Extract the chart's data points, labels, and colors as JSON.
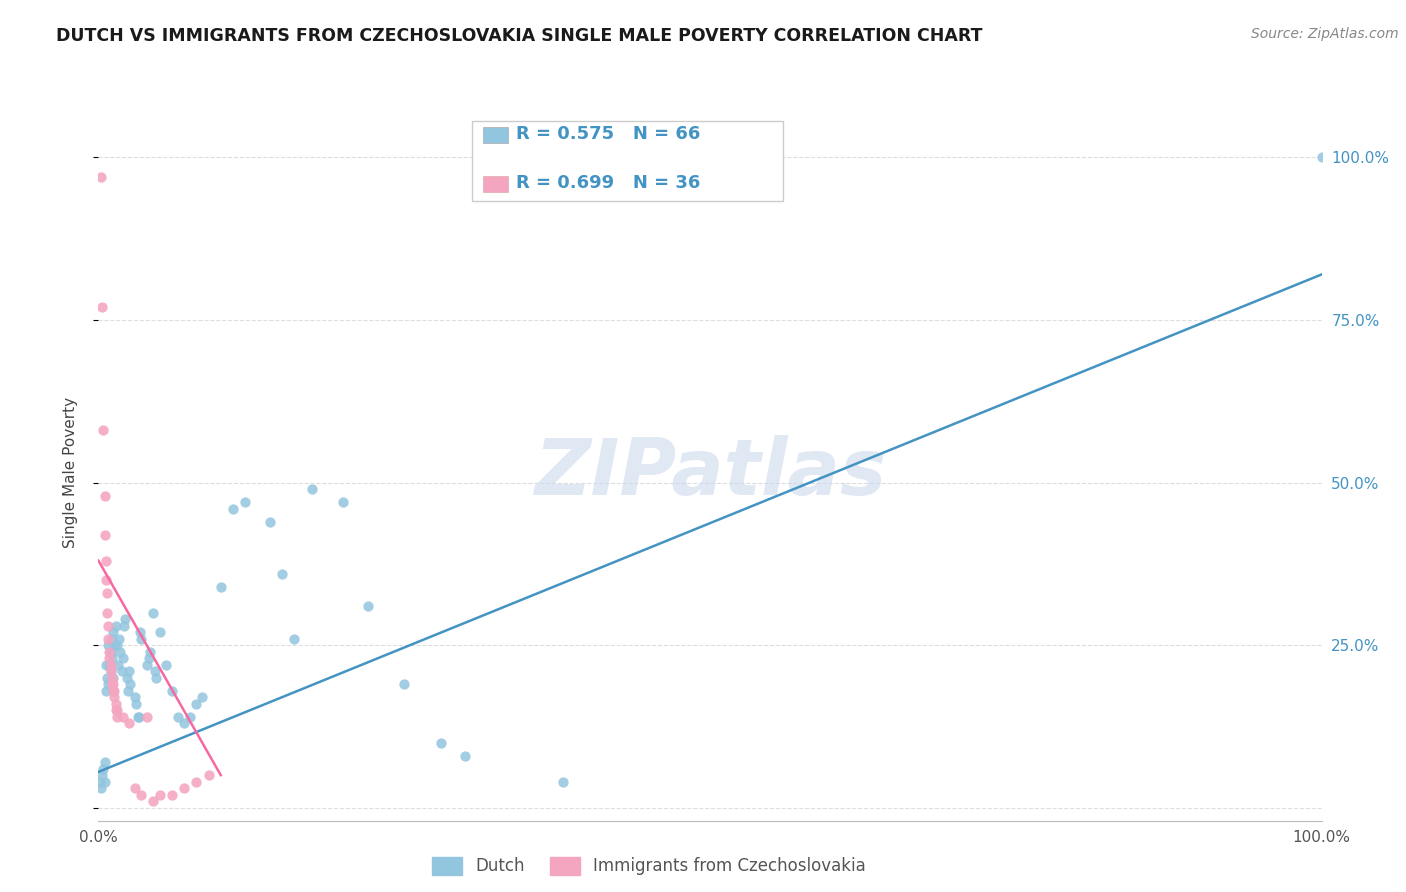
{
  "title": "DUTCH VS IMMIGRANTS FROM CZECHOSLOVAKIA SINGLE MALE POVERTY CORRELATION CHART",
  "source": "Source: ZipAtlas.com",
  "ylabel": "Single Male Poverty",
  "legend_dutch": "Dutch",
  "legend_czech": "Immigrants from Czechoslovakia",
  "legend_r_dutch": "R = 0.575",
  "legend_n_dutch": "N = 66",
  "legend_r_czech": "R = 0.699",
  "legend_n_czech": "N = 36",
  "watermark": "ZIPatlas",
  "dutch_color": "#92c5de",
  "czech_color": "#f4a6c0",
  "line_dutch_color": "#4393c3",
  "line_czech_color": "#f768a1",
  "right_tick_color": "#4393c3",
  "legend_text_color": "#4393c3",
  "dutch_points": [
    [
      0.001,
      0.04
    ],
    [
      0.002,
      0.03
    ],
    [
      0.003,
      0.05
    ],
    [
      0.004,
      0.06
    ],
    [
      0.005,
      0.07
    ],
    [
      0.005,
      0.04
    ],
    [
      0.006,
      0.18
    ],
    [
      0.006,
      0.22
    ],
    [
      0.007,
      0.2
    ],
    [
      0.008,
      0.19
    ],
    [
      0.008,
      0.25
    ],
    [
      0.009,
      0.22
    ],
    [
      0.01,
      0.24
    ],
    [
      0.01,
      0.21
    ],
    [
      0.011,
      0.23
    ],
    [
      0.011,
      0.26
    ],
    [
      0.012,
      0.27
    ],
    [
      0.012,
      0.2
    ],
    [
      0.013,
      0.25
    ],
    [
      0.014,
      0.28
    ],
    [
      0.015,
      0.25
    ],
    [
      0.016,
      0.22
    ],
    [
      0.017,
      0.26
    ],
    [
      0.018,
      0.24
    ],
    [
      0.019,
      0.21
    ],
    [
      0.02,
      0.23
    ],
    [
      0.021,
      0.28
    ],
    [
      0.022,
      0.29
    ],
    [
      0.023,
      0.2
    ],
    [
      0.024,
      0.18
    ],
    [
      0.025,
      0.21
    ],
    [
      0.026,
      0.19
    ],
    [
      0.03,
      0.17
    ],
    [
      0.031,
      0.16
    ],
    [
      0.032,
      0.14
    ],
    [
      0.033,
      0.14
    ],
    [
      0.034,
      0.27
    ],
    [
      0.035,
      0.26
    ],
    [
      0.04,
      0.22
    ],
    [
      0.041,
      0.23
    ],
    [
      0.042,
      0.24
    ],
    [
      0.045,
      0.3
    ],
    [
      0.046,
      0.21
    ],
    [
      0.047,
      0.2
    ],
    [
      0.05,
      0.27
    ],
    [
      0.055,
      0.22
    ],
    [
      0.06,
      0.18
    ],
    [
      0.065,
      0.14
    ],
    [
      0.07,
      0.13
    ],
    [
      0.075,
      0.14
    ],
    [
      0.08,
      0.16
    ],
    [
      0.085,
      0.17
    ],
    [
      0.1,
      0.34
    ],
    [
      0.11,
      0.46
    ],
    [
      0.12,
      0.47
    ],
    [
      0.14,
      0.44
    ],
    [
      0.15,
      0.36
    ],
    [
      0.16,
      0.26
    ],
    [
      0.175,
      0.49
    ],
    [
      0.2,
      0.47
    ],
    [
      0.22,
      0.31
    ],
    [
      0.25,
      0.19
    ],
    [
      0.28,
      0.1
    ],
    [
      0.3,
      0.08
    ],
    [
      0.38,
      0.04
    ],
    [
      1.0,
      1.0
    ]
  ],
  "czech_points": [
    [
      0.002,
      0.97
    ],
    [
      0.003,
      0.77
    ],
    [
      0.004,
      0.58
    ],
    [
      0.005,
      0.48
    ],
    [
      0.005,
      0.42
    ],
    [
      0.006,
      0.38
    ],
    [
      0.006,
      0.35
    ],
    [
      0.007,
      0.33
    ],
    [
      0.007,
      0.3
    ],
    [
      0.008,
      0.28
    ],
    [
      0.008,
      0.26
    ],
    [
      0.009,
      0.24
    ],
    [
      0.009,
      0.23
    ],
    [
      0.01,
      0.22
    ],
    [
      0.01,
      0.21
    ],
    [
      0.011,
      0.2
    ],
    [
      0.011,
      0.19
    ],
    [
      0.012,
      0.19
    ],
    [
      0.012,
      0.18
    ],
    [
      0.013,
      0.18
    ],
    [
      0.013,
      0.17
    ],
    [
      0.014,
      0.16
    ],
    [
      0.014,
      0.15
    ],
    [
      0.015,
      0.15
    ],
    [
      0.015,
      0.14
    ],
    [
      0.02,
      0.14
    ],
    [
      0.025,
      0.13
    ],
    [
      0.03,
      0.03
    ],
    [
      0.035,
      0.02
    ],
    [
      0.04,
      0.14
    ],
    [
      0.045,
      0.01
    ],
    [
      0.05,
      0.02
    ],
    [
      0.06,
      0.02
    ],
    [
      0.07,
      0.03
    ],
    [
      0.08,
      0.04
    ],
    [
      0.09,
      0.05
    ]
  ],
  "dutch_trendline_x": [
    0.0,
    1.0
  ],
  "dutch_trendline_y": [
    0.055,
    0.82
  ],
  "czech_trendline_x": [
    0.0,
    0.1
  ],
  "czech_trendline_y": [
    0.38,
    0.05
  ],
  "xmin": 0.0,
  "xmax": 1.0,
  "ymin": -0.02,
  "ymax": 1.05,
  "xticks": [
    0.0,
    0.25,
    0.5,
    0.75,
    1.0
  ],
  "xticklabels": [
    "0.0%",
    "",
    "",
    "",
    "100.0%"
  ],
  "yticks": [
    0.0,
    0.25,
    0.5,
    0.75,
    1.0
  ],
  "right_yticklabels": [
    "",
    "25.0%",
    "50.0%",
    "75.0%",
    "100.0%"
  ]
}
